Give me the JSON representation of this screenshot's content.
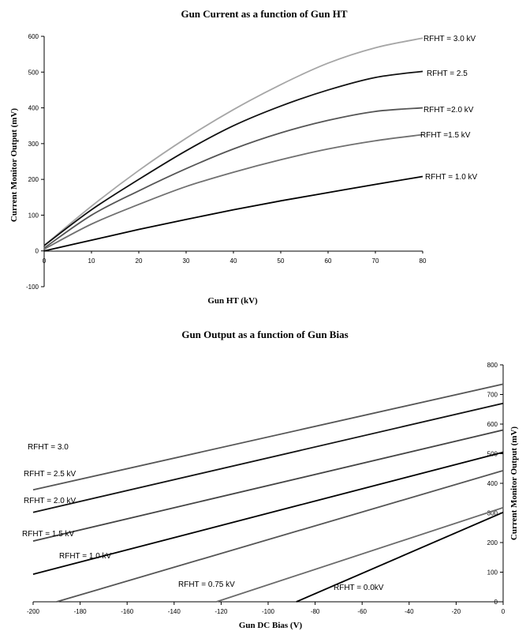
{
  "chart_data": [
    {
      "type": "line",
      "title": "Gun Current as a function of Gun HT",
      "xlabel": "Gun HT (kV)",
      "ylabel": "Current Monitor Output (mV)",
      "xlim": [
        0,
        80
      ],
      "ylim": [
        -100,
        600
      ],
      "xticks": [
        0,
        10,
        20,
        30,
        40,
        50,
        60,
        70,
        80
      ],
      "yticks": [
        -100,
        0,
        100,
        200,
        300,
        400,
        500,
        600
      ],
      "grid": false,
      "x": [
        0,
        10,
        20,
        30,
        40,
        50,
        60,
        70,
        80
      ],
      "series": [
        {
          "name": "RFHT = 3.0 kV",
          "color": "#a6a6a6",
          "values": [
            15,
            125,
            225,
            315,
            395,
            465,
            525,
            568,
            595
          ]
        },
        {
          "name": "RFHT = 2.5",
          "color": "#111111",
          "values": [
            15,
            115,
            200,
            280,
            350,
            405,
            450,
            485,
            502
          ]
        },
        {
          "name": "RFHT =2.0 kV",
          "color": "#555555",
          "values": [
            8,
            100,
            168,
            230,
            285,
            330,
            365,
            390,
            400
          ]
        },
        {
          "name": "RFHT =1.5 kV",
          "color": "#707070",
          "values": [
            5,
            75,
            130,
            180,
            220,
            255,
            285,
            308,
            325
          ]
        },
        {
          "name": "RFHT = 1.0 kV",
          "color": "#000000",
          "values": [
            0,
            30,
            60,
            88,
            115,
            140,
            163,
            186,
            208
          ]
        }
      ]
    },
    {
      "type": "line",
      "title": "Gun Output as a function of Gun Bias",
      "xlabel": "Gun DC Bias (V)",
      "ylabel": "Current Monitor Output (mV)",
      "xlim": [
        -200,
        0
      ],
      "ylim": [
        0,
        800
      ],
      "xticks": [
        -200,
        -180,
        -160,
        -140,
        -120,
        -100,
        -80,
        -60,
        -40,
        -20,
        0
      ],
      "yticks": [
        0,
        100,
        200,
        300,
        400,
        500,
        600,
        700,
        800
      ],
      "grid": false,
      "series": [
        {
          "name": "RFHT = 3.0",
          "color": "#555555",
          "x": [
            -200,
            0
          ],
          "values": [
            378,
            735
          ]
        },
        {
          "name": "RFHT = 2.5 kV",
          "color": "#111111",
          "x": [
            -200,
            0
          ],
          "values": [
            302,
            670
          ]
        },
        {
          "name": "RFHT = 2.0 kV",
          "color": "#444444",
          "x": [
            -200,
            0
          ],
          "values": [
            205,
            580
          ]
        },
        {
          "name": "RFHT = 1.5 kV",
          "color": "#000000",
          "x": [
            -200,
            0
          ],
          "values": [
            93,
            505
          ]
        },
        {
          "name": "RFHT = 1.0 kV",
          "color": "#555555",
          "x": [
            -190,
            0
          ],
          "values": [
            0,
            443
          ]
        },
        {
          "name": "RFHT = 0.75 kV",
          "color": "#6a6a6a",
          "x": [
            -122,
            0
          ],
          "values": [
            0,
            318
          ]
        },
        {
          "name": "RFHT = 0.0kV",
          "color": "#000000",
          "x": [
            -88,
            0
          ],
          "values": [
            0,
            302
          ]
        }
      ]
    }
  ]
}
